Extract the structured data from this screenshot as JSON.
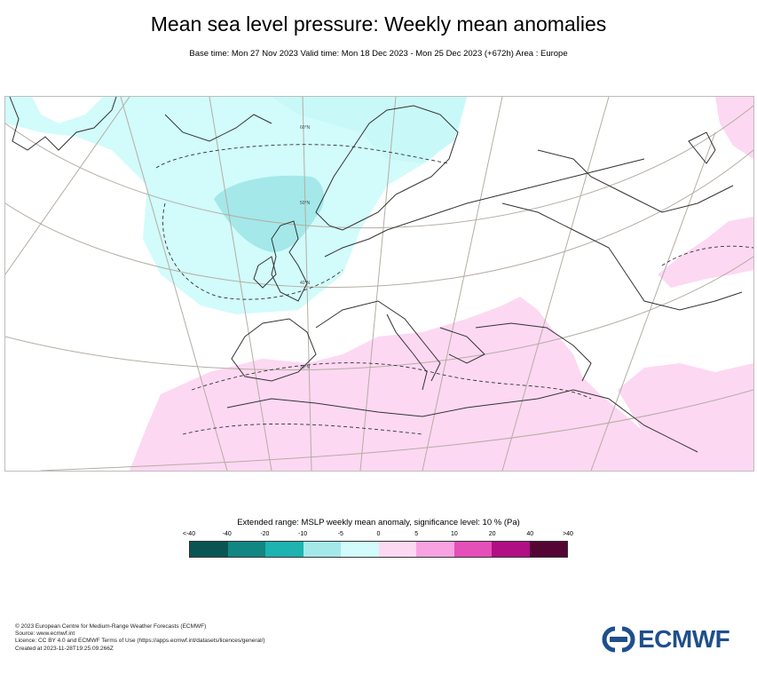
{
  "header": {
    "title": "Mean sea level pressure: Weekly mean anomalies",
    "subtitle": "Base time: Mon 27 Nov 2023 Valid time: Mon 18 Dec 2023 - Mon 25 Dec 2023 (+672h) Area : Europe"
  },
  "map": {
    "contour_labels": [
      "50°N",
      "40°N",
      "30°N",
      "60°N"
    ]
  },
  "legend": {
    "title": "Extended range: MSLP weekly mean anomaly, significance level: 10 % (Pa)",
    "ticks": [
      "<-40",
      "-40",
      "-20",
      "-10",
      "-5",
      "0",
      "5",
      "10",
      "20",
      "40",
      ">40"
    ],
    "colors": [
      "#0a5553",
      "#128683",
      "#1db3b0",
      "#a4e8ea",
      "#d2fbfb",
      "#fdd8f2",
      "#f9a2e1",
      "#e44fb8",
      "#b10f84",
      "#550533"
    ]
  },
  "footer": {
    "line1": "© 2023 European Centre for Medium-Range Weather Forecasts (ECMWF)",
    "line2": "Source: www.ecmwf.int",
    "line3": "Licence: CC BY 4.0 and ECMWF Terms of Use (https://apps.ecmwf.int/datasets/licences/general/)",
    "line4": "Created at 2023-11-28T19:25:09.266Z",
    "logo_text": "ECMWF"
  }
}
